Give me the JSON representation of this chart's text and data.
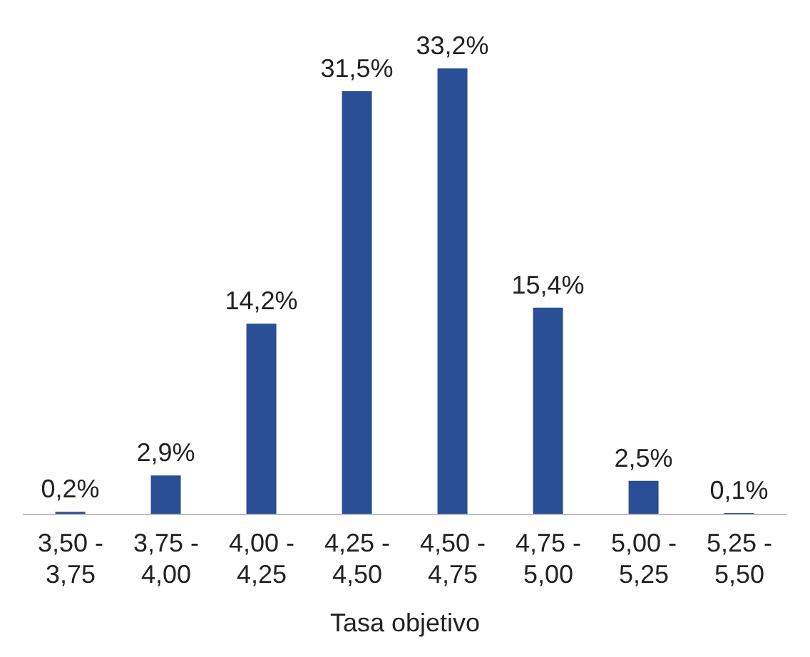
{
  "chart_data": {
    "type": "bar",
    "xlabel": "Tasa objetivo",
    "categories": [
      "3,50 - 3,75",
      "3,75 - 4,00",
      "4,00 - 4,25",
      "4,25 - 4,50",
      "4,50 - 4,75",
      "4,75 - 5,00",
      "5,00 - 5,25",
      "5,25 - 5,50"
    ],
    "values": [
      0.2,
      2.9,
      14.2,
      31.5,
      33.2,
      15.4,
      2.5,
      0.1
    ],
    "value_labels": [
      "0,2%",
      "2,9%",
      "14,2%",
      "31,5%",
      "33,2%",
      "15,4%",
      "2,5%",
      "0,1%"
    ],
    "color": "#2a4f96"
  }
}
